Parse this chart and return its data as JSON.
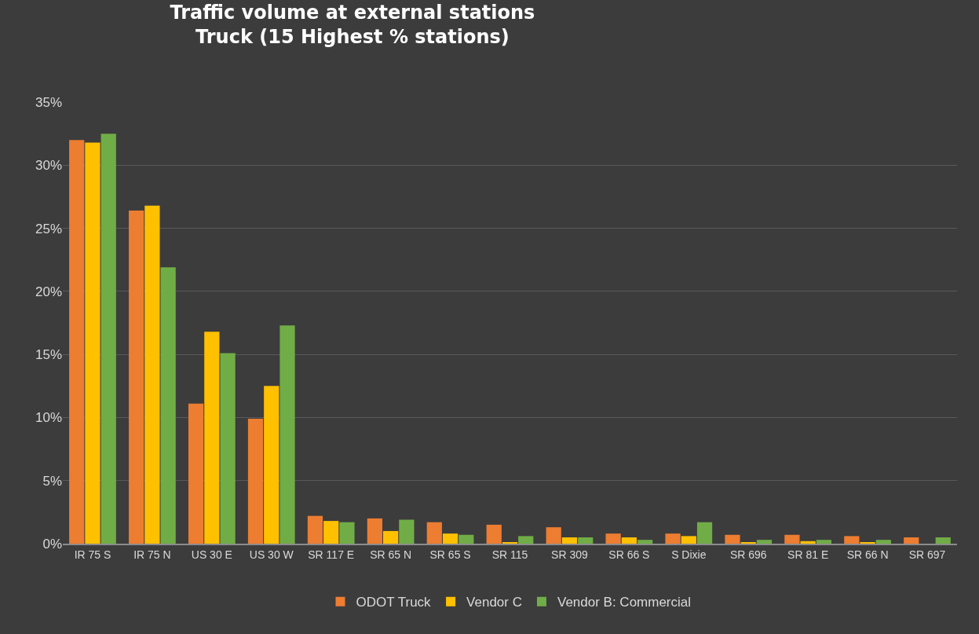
{
  "chart_data": {
    "type": "bar",
    "title": "Traffic volume at external stations\nTruck (15 Highest % stations)",
    "categories": [
      "IR 75 S",
      "IR 75 N",
      "US 30 E",
      "US 30 W",
      "SR 117 E",
      "SR 65 N",
      "SR 65 S",
      "SR 115",
      "SR 309",
      "SR 66 S",
      "S Dixie",
      "SR 696",
      "SR 81 E",
      "SR 66 N",
      "SR 697"
    ],
    "series": [
      {
        "name": "ODOT Truck",
        "color": "#ed7d31",
        "values": [
          32.0,
          26.4,
          11.1,
          9.9,
          2.2,
          2.0,
          1.7,
          1.5,
          1.3,
          0.8,
          0.8,
          0.7,
          0.7,
          0.6,
          0.5
        ]
      },
      {
        "name": "Vendor C",
        "color": "#ffc000",
        "values": [
          31.8,
          26.8,
          16.8,
          12.5,
          1.8,
          1.0,
          0.8,
          0.1,
          0.5,
          0.5,
          0.6,
          0.1,
          0.2,
          0.1,
          0
        ]
      },
      {
        "name": "Vendor B: Commercial",
        "color": "#70ad47",
        "values": [
          32.5,
          21.9,
          15.1,
          17.3,
          1.7,
          1.9,
          0.7,
          0.6,
          0.5,
          0.3,
          1.7,
          0.3,
          0.3,
          0.3,
          0.5
        ]
      }
    ],
    "ylim": [
      0,
      35
    ],
    "yticks": [
      {
        "value": 0,
        "label": "0%"
      },
      {
        "value": 5,
        "label": "5%"
      },
      {
        "value": 10,
        "label": "10%"
      },
      {
        "value": 15,
        "label": "15%"
      },
      {
        "value": 20,
        "label": "20%"
      },
      {
        "value": 25,
        "label": "25%"
      },
      {
        "value": 30,
        "label": "30%"
      },
      {
        "value": 35,
        "label": "35%"
      }
    ],
    "grid": "y",
    "legend": "bottom"
  }
}
